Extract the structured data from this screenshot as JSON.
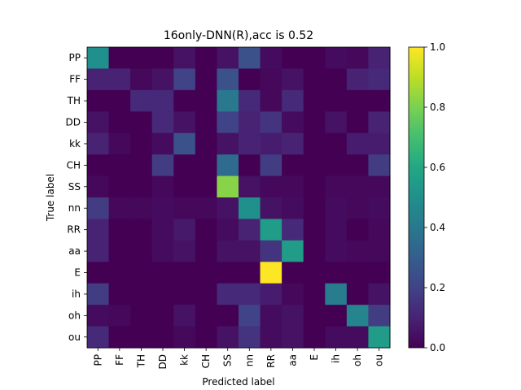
{
  "chart_data": {
    "type": "heatmap",
    "title": "16only-DNN(R),acc is 0.52",
    "xlabel": "Predicted label",
    "ylabel": "True label",
    "labels": [
      "PP",
      "FF",
      "TH",
      "DD",
      "kk",
      "CH",
      "SS",
      "nn",
      "RR",
      "aa",
      "E",
      "ih",
      "oh",
      "ou"
    ],
    "values": [
      [
        0.5,
        0.0,
        0.0,
        0.0,
        0.05,
        0.0,
        0.05,
        0.25,
        0.03,
        0.0,
        0.0,
        0.03,
        0.02,
        0.1
      ],
      [
        0.1,
        0.1,
        0.02,
        0.05,
        0.2,
        0.0,
        0.25,
        0.0,
        0.02,
        0.05,
        0.0,
        0.0,
        0.1,
        0.12
      ],
      [
        0.0,
        0.0,
        0.12,
        0.12,
        0.0,
        0.0,
        0.4,
        0.12,
        0.02,
        0.12,
        0.0,
        0.0,
        0.0,
        0.0
      ],
      [
        0.05,
        0.0,
        0.0,
        0.12,
        0.05,
        0.0,
        0.2,
        0.1,
        0.15,
        0.03,
        0.0,
        0.05,
        0.0,
        0.1
      ],
      [
        0.1,
        0.02,
        0.0,
        0.03,
        0.25,
        0.0,
        0.05,
        0.1,
        0.08,
        0.1,
        0.0,
        0.0,
        0.08,
        0.08
      ],
      [
        0.0,
        0.0,
        0.0,
        0.18,
        0.0,
        0.0,
        0.35,
        0.0,
        0.18,
        0.0,
        0.0,
        0.0,
        0.0,
        0.18
      ],
      [
        0.02,
        0.0,
        0.0,
        0.02,
        0.0,
        0.0,
        0.82,
        0.05,
        0.02,
        0.02,
        0.0,
        0.02,
        0.02,
        0.02
      ],
      [
        0.18,
        0.02,
        0.02,
        0.03,
        0.02,
        0.02,
        0.05,
        0.5,
        0.05,
        0.03,
        0.0,
        0.03,
        0.02,
        0.03
      ],
      [
        0.1,
        0.0,
        0.0,
        0.03,
        0.07,
        0.0,
        0.03,
        0.1,
        0.55,
        0.12,
        0.0,
        0.03,
        0.0,
        0.02
      ],
      [
        0.1,
        0.0,
        0.0,
        0.03,
        0.05,
        0.0,
        0.05,
        0.05,
        0.15,
        0.55,
        0.0,
        0.03,
        0.02,
        0.02
      ],
      [
        0.0,
        0.0,
        0.0,
        0.0,
        0.0,
        0.0,
        0.0,
        0.0,
        1.0,
        0.0,
        0.0,
        0.0,
        0.0,
        0.0
      ],
      [
        0.18,
        0.0,
        0.0,
        0.0,
        0.0,
        0.0,
        0.12,
        0.12,
        0.08,
        0.02,
        0.0,
        0.42,
        0.0,
        0.05
      ],
      [
        0.03,
        0.02,
        0.0,
        0.0,
        0.05,
        0.0,
        0.0,
        0.2,
        0.03,
        0.05,
        0.0,
        0.0,
        0.45,
        0.18
      ],
      [
        0.12,
        0.0,
        0.0,
        0.0,
        0.02,
        0.0,
        0.05,
        0.15,
        0.03,
        0.05,
        0.0,
        0.03,
        0.03,
        0.55
      ]
    ],
    "colorbar": {
      "min": 0.0,
      "max": 1.0,
      "ticks": [
        0.0,
        0.2,
        0.4,
        0.6,
        0.8,
        1.0
      ],
      "tick_labels": [
        "0.0",
        "0.2",
        "0.4",
        "0.6",
        "0.8",
        "1.0"
      ],
      "colormap": "viridis"
    },
    "grid": false
  }
}
